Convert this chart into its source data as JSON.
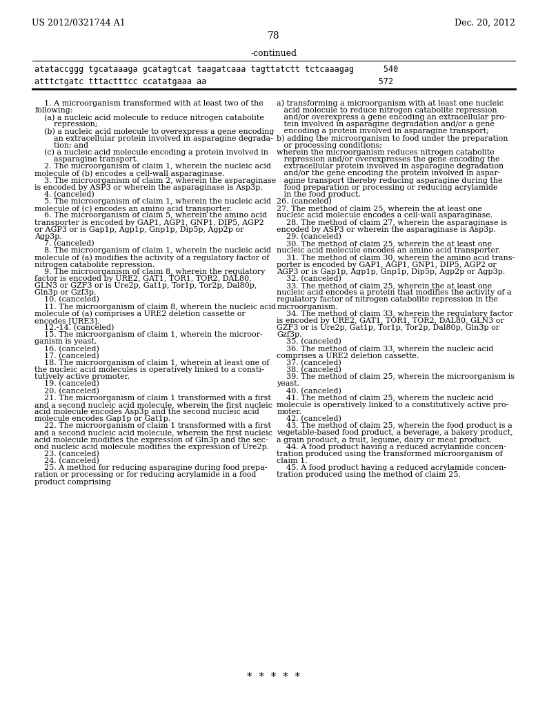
{
  "background_color": "#ffffff",
  "header_left": "US 2012/0321744 A1",
  "header_right": "Dec. 20, 2012",
  "page_number": "78",
  "continued_label": "-continued",
  "seq_line1": "atataccggg tgcataaaga gcatagtcat taagatcaaa tagttatctt tctcaaagag      540",
  "seq_line2": "atttctgatc tttactttcc ccatatgaaa aa                                   572",
  "left_col_text": [
    "    1. A microorganism transformed with at least two of the",
    "following:",
    "    (a) a nucleic acid molecule to reduce nitrogen catabolite",
    "        repression;",
    "    (b) a nucleic acid molecule to overexpress a gene encoding",
    "        an extracellular protein involved in asparagine degrada-",
    "        tion; and",
    "    (c) a nucleic acid molecule encoding a protein involved in",
    "        asparagine transport.",
    "    2. The microorganism of claim 1, wherein the nucleic acid",
    "molecule of (b) encodes a cell-wall asparaginase.",
    "    3. The microorganism of claim 2, wherein the asparaginase",
    "is encoded by ASP3 or wherein the asparaginase is Asp3p.",
    "    4. (canceled)",
    "    5. The microorganism of claim 1, wherein the nucleic acid",
    "molecule of (c) encodes an amino acid transporter.",
    "    6. The microorganism of claim 5, wherein the amino acid",
    "transporter is encoded by GAP1, AGP1, GNP1, DIP5, AGP2",
    "or AGP3 or is Gap1p, Agp1p, Gnp1p, Dip5p, Agp2p or",
    "Agp3p.",
    "    7. (canceled)",
    "    8. The microorganism of claim 1, wherein the nucleic acid",
    "molecule of (a) modifies the activity of a regulatory factor of",
    "nitrogen catabolite repression.",
    "    9. The microorganism of claim 8, wherein the regulatory",
    "factor is encoded by URE2, GAT1, TOR1, TOR2, DAL80,",
    "GLN3 or GZF3 or is Ure2p, Gat1p, Tor1p, Tor2p, Dal80p,",
    "Gln3p or Gzf3p.",
    "    10. (canceled)",
    "    11. The microorganism of claim 8, wherein the nucleic acid",
    "molecule of (a) comprises a URE2 deletion cassette or",
    "encodes [URE3].",
    "    12.-14. (canceled)",
    "    15. The microorganism of claim 1, wherein the microor-",
    "ganism is yeast.",
    "    16. (canceled)",
    "    17. (canceled)",
    "    18. The microorganism of claim 1, wherein at least one of",
    "the nucleic acid molecules is operatively linked to a consti-",
    "tutively active promoter.",
    "    19. (canceled)",
    "    20. (canceled)",
    "    21. The microorganism of claim 1 transformed with a first",
    "and a second nucleic acid molecule, wherein the first nucleic",
    "acid molecule encodes Asp3p and the second nucleic acid",
    "molecule encodes Gap1p or Gat1p.",
    "    22. The microorganism of claim 1 transformed with a first",
    "and a second nucleic acid molecule, wherein the first nucleic",
    "acid molecule modifies the expression of Gln3p and the sec-",
    "ond nucleic acid molecule modifies the expression of Ure2p.",
    "    23. (canceled)",
    "    24. (canceled)",
    "    25. A method for reducing asparagine during food prepa-",
    "ration or processing or for reducing acrylamide in a food",
    "product comprising"
  ],
  "right_col_text": [
    "a) transforming a microorganism with at least one nucleic",
    "   acid molecule to reduce nitrogen catabolite repression",
    "   and/or overexpress a gene encoding an extracellular pro-",
    "   tein involved in asparagine degradation and/or a gene",
    "   encoding a protein involved in asparagine transport;",
    "b) adding the microorganism to food under the preparation",
    "   or processing conditions;",
    "wherein the microorganism reduces nitrogen catabolite",
    "   repression and/or overexpresses the gene encoding the",
    "   extracellular protein involved in asparagine degradation",
    "   and/or the gene encoding the protein involved in aspar-",
    "   agine transport thereby reducing asparagine during the",
    "   food preparation or processing or reducing acrylamide",
    "   in the food product.",
    "26. (canceled)",
    "27. The method of claim 25, wherein the at least one",
    "nucleic acid molecule encodes a cell-wall asparaginase.",
    "    28. The method of claim 27, wherein the asparaginase is",
    "encoded by ASP3 or wherein the asparaginase is Asp3p.",
    "    29. (canceled)",
    "    30. The method of claim 25, wherein the at least one",
    "nucleic acid molecule encodes an amino acid transporter.",
    "    31. The method of claim 30, wherein the amino acid trans-",
    "porter is encoded by GAP1, AGP1, GNP1, DIP5, AGP2 or",
    "AGP3 or is Gap1p, Agp1p, Gnp1p, Dip5p, Agp2p or Agp3p.",
    "    32. (canceled)",
    "    33. The method of claim 25, wherein the at least one",
    "nucleic acid encodes a protein that modifies the activity of a",
    "regulatory factor of nitrogen catabolite repression in the",
    "microorganism.",
    "    34. The method of claim 33, wherein the regulatory factor",
    "is encoded by URE2, GAT1, TOR1, TOR2, DAL80, GLN3 or",
    "GZF3 or is Ure2p, Gat1p, Tor1p, Tor2p, Dal80p, Gln3p or",
    "Gzf3p.",
    "    35. (canceled)",
    "    36. The method of claim 33, wherein the nucleic acid",
    "comprises a URE2 deletion cassette.",
    "    37. (canceled)",
    "    38. (canceled)",
    "    39. The method of claim 25, wherein the microorganism is",
    "yeast.",
    "    40. (canceled)",
    "    41. The method of claim 25, wherein the nucleic acid",
    "molecule is operatively linked to a constitutively active pro-",
    "moter.",
    "    42. (canceled)",
    "    43. The method of claim 25, wherein the food product is a",
    "vegetable-based food product, a beverage, a bakery product,",
    "a grain product, a fruit, legume, dairy or meat product.",
    "    44. A food product having a reduced acrylamide concen-",
    "tration produced using the transformed microorganism of",
    "claim 1.",
    "    45. A food product having a reduced acrylamide concen-",
    "tration produced using the method of claim 25."
  ],
  "footer_stars": "*  *  *  *  *"
}
